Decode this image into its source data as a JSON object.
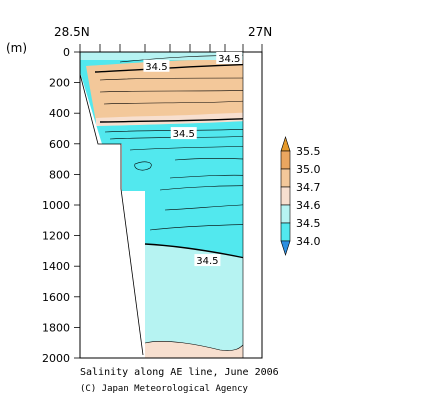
{
  "chart_data": {
    "type": "heatmap",
    "variable": "Salinity",
    "x_labels": {
      "left": "28.5N",
      "right": "27N"
    },
    "y_unit": "(m)",
    "y_ticks": [
      0,
      200,
      400,
      600,
      800,
      1000,
      1200,
      1400,
      1600,
      1800,
      2000
    ],
    "ylim": [
      0,
      2000
    ],
    "colorbar": {
      "levels": [
        "35.5",
        "35.0",
        "34.7",
        "34.6",
        "34.5",
        "34.0"
      ],
      "colors": [
        "#e69a2b",
        "#eaa660",
        "#f3c89a",
        "#f7dfcf",
        "#b6f3f2",
        "#52e8ee",
        "#2d8fe0"
      ]
    },
    "contour_labels": [
      {
        "text": "34.5",
        "x_frac": 0.42,
        "depth": 90
      },
      {
        "text": "34.5",
        "x_frac": 0.82,
        "depth": 5
      },
      {
        "text": "34.5",
        "x_frac": 0.57,
        "depth": 530
      },
      {
        "text": "34.5",
        "x_frac": 0.7,
        "depth": 1360
      }
    ],
    "caption": "Salinity along AE line, June 2006",
    "credit": "(C) Japan Meteorological Agency"
  }
}
